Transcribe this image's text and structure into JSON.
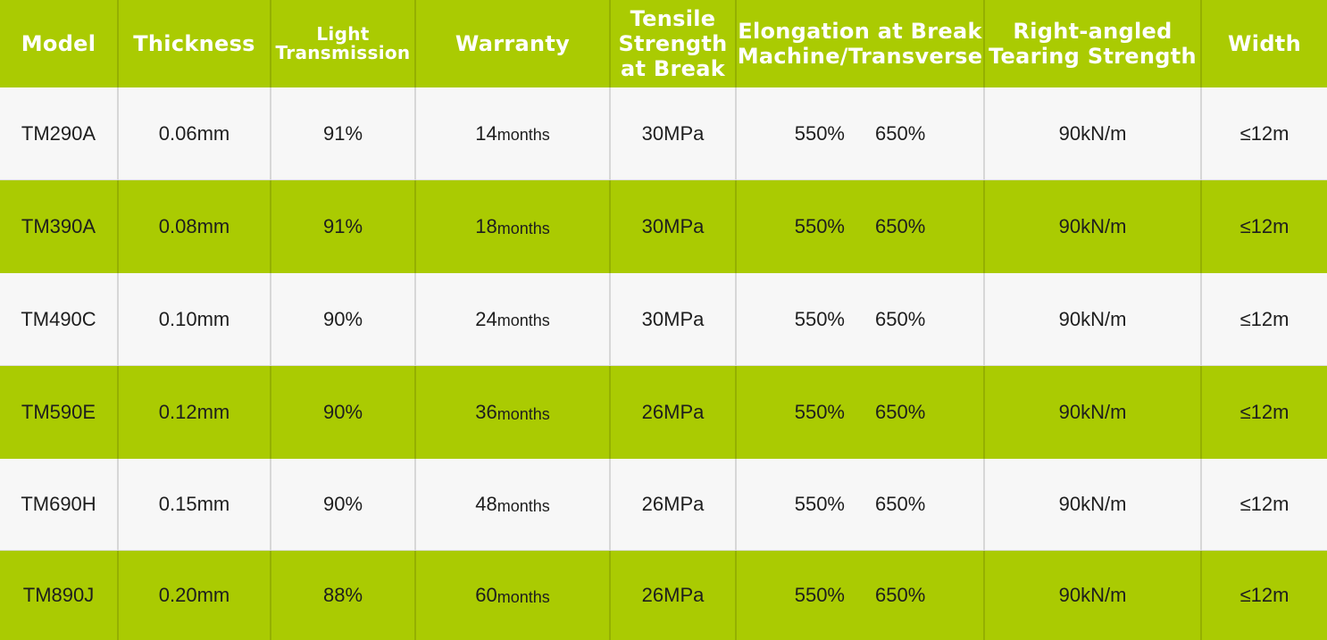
{
  "table": {
    "headers": [
      [
        "Model"
      ],
      [
        "Thickness"
      ],
      [
        "Light",
        "Transmission"
      ],
      [
        "Warranty"
      ],
      [
        "Tensile",
        "Strength",
        "at Break"
      ],
      [
        "Elongation at Break",
        "Machine/Transverse"
      ],
      [
        "Right-angled",
        "Tearing Strength"
      ],
      [
        "Width"
      ]
    ],
    "rows": [
      [
        "TM290A",
        "0.06mm",
        "91%",
        [
          "14",
          "months"
        ],
        "30MPa",
        [
          "550%",
          "650%"
        ],
        "90kN/m",
        "≤12m"
      ],
      [
        "TM390A",
        "0.08mm",
        "91%",
        [
          "18",
          "months"
        ],
        "30MPa",
        [
          "550%",
          "650%"
        ],
        "90kN/m",
        "≤12m"
      ],
      [
        "TM490C",
        "0.10mm",
        "90%",
        [
          "24",
          "months"
        ],
        "30MPa",
        [
          "550%",
          "650%"
        ],
        "90kN/m",
        "≤12m"
      ],
      [
        "TM590E",
        "0.12mm",
        "90%",
        [
          "36",
          "months"
        ],
        "26MPa",
        [
          "550%",
          "650%"
        ],
        "90kN/m",
        "≤12m"
      ],
      [
        "TM690H",
        "0.15mm",
        "90%",
        [
          "48",
          "months"
        ],
        "26MPa",
        [
          "550%",
          "650%"
        ],
        "90kN/m",
        "≤12m"
      ],
      [
        "TM890J",
        "0.20mm",
        "88%",
        [
          "60",
          "months"
        ],
        "26MPa",
        [
          "550%",
          "650%"
        ],
        "90kN/m",
        "≤12m"
      ]
    ]
  }
}
